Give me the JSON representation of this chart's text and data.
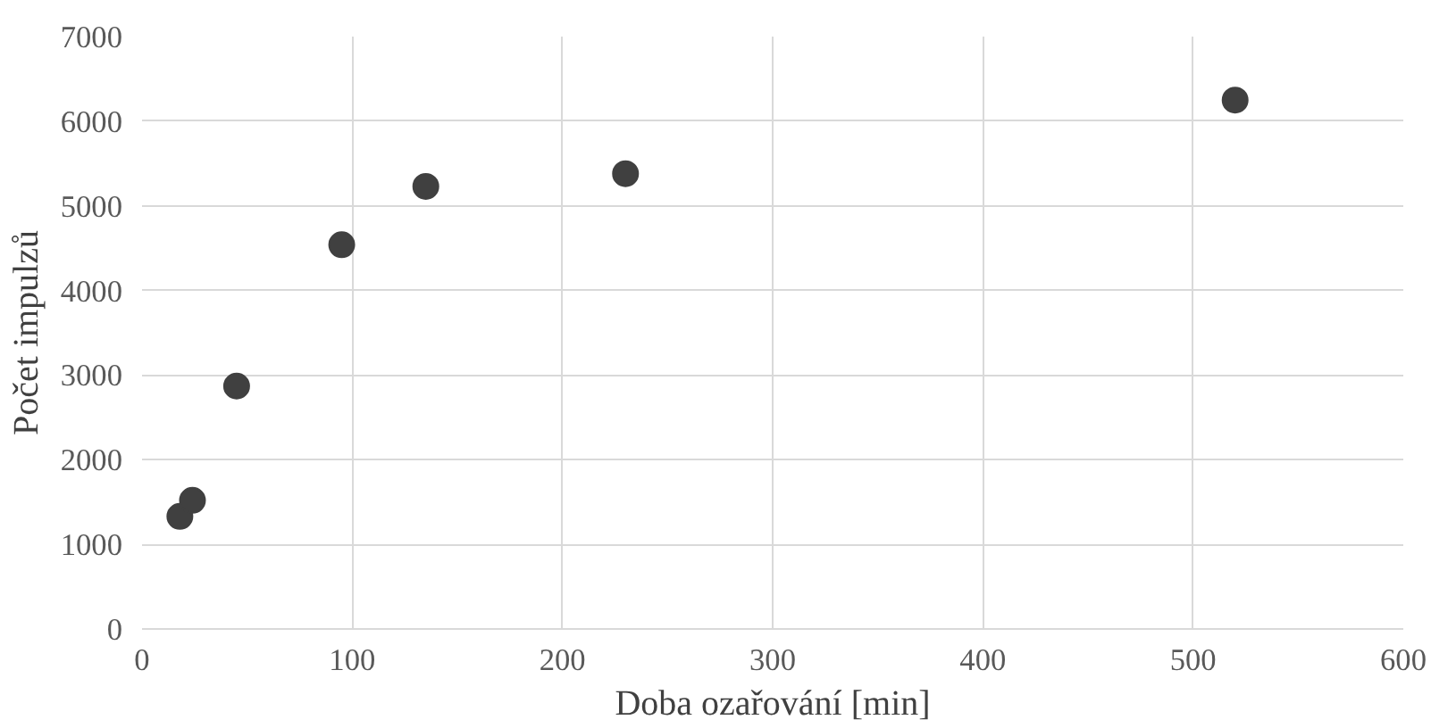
{
  "chart_data": {
    "type": "scatter",
    "xlabel": "Doba ozařování [min]",
    "ylabel": "Počet impulzů",
    "x": [
      18,
      24,
      45,
      95,
      135,
      230,
      520
    ],
    "series": [
      {
        "color": "#404040",
        "values": [
          1330,
          1520,
          2870,
          4540,
          5230,
          5380,
          6250
        ]
      }
    ],
    "xlim": [
      0,
      600
    ],
    "xticks": [
      0,
      100,
      200,
      300,
      400,
      500,
      600
    ],
    "ylim": [
      0,
      7000
    ],
    "yticks": [
      0,
      1000,
      2000,
      3000,
      4000,
      5000,
      6000,
      7000
    ],
    "grid": true,
    "marker": "circle"
  }
}
